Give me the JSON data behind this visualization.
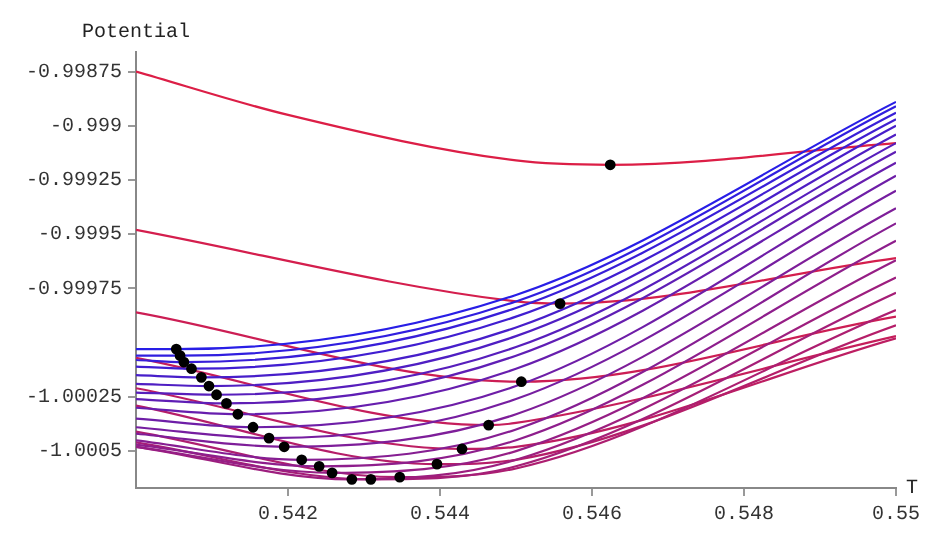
{
  "chart_data": {
    "type": "line",
    "xlabel": "T",
    "ylabel": "Potential",
    "xlim": [
      0.54,
      0.55
    ],
    "ylim": [
      -1.00067,
      -0.99866
    ],
    "xticks": [
      0.542,
      0.544,
      0.546,
      0.548,
      0.55
    ],
    "yticks": [
      -0.99875,
      -0.999,
      -0.99925,
      -0.9995,
      -0.99975,
      -1.00025,
      -1.0005
    ],
    "grid": false,
    "legend": false,
    "marker": "none",
    "line_style": "solid",
    "series": [
      {
        "type": "scatter",
        "marker": "circle",
        "color": "#000000",
        "x": [
          0.54053,
          0.54058,
          0.54063,
          0.54073,
          0.54086,
          0.54096,
          0.54106,
          0.54119,
          0.54134,
          0.54154,
          0.54175,
          0.54195,
          0.54218,
          0.54241,
          0.54258,
          0.54284,
          0.54309,
          0.54347,
          0.54396,
          0.54429,
          0.54464,
          0.54507,
          0.54558,
          0.54624
        ],
        "values": [
          -1.00003,
          -1.00006,
          -1.00009,
          -1.00012,
          -1.00016,
          -1.0002,
          -1.00024,
          -1.00028,
          -1.00033,
          -1.00039,
          -1.00044,
          -1.00048,
          -1.00054,
          -1.00057,
          -1.0006,
          -1.00063,
          -1.00063,
          -1.00062,
          -1.00056,
          -1.00049,
          -1.00038,
          -1.00018,
          -0.99982,
          -0.99918
        ]
      },
      {
        "color": "#281ee6",
        "x": [
          0.54,
          0.54053,
          0.545,
          0.55
        ],
        "values": [
          -1.00003,
          -1.00003,
          -0.99978,
          -0.99889
        ]
      },
      {
        "color": "#301edf",
        "x": [
          0.54,
          0.54058,
          0.545,
          0.55
        ],
        "values": [
          -1.00006,
          -1.00006,
          -0.99981,
          -0.99891
        ]
      },
      {
        "color": "#381ed8",
        "x": [
          0.54,
          0.54063,
          0.545,
          0.55
        ],
        "values": [
          -1.00008,
          -1.00009,
          -0.99984,
          -0.99894
        ]
      },
      {
        "color": "#401ed1",
        "x": [
          0.54,
          0.54073,
          0.545,
          0.55
        ],
        "values": [
          -1.00011,
          -1.00012,
          -0.99988,
          -0.99897
        ]
      },
      {
        "color": "#471eca",
        "x": [
          0.54,
          0.54086,
          0.545,
          0.55
        ],
        "values": [
          -1.00015,
          -1.00016,
          -0.99993,
          -0.999
        ]
      },
      {
        "color": "#4f1ec3",
        "x": [
          0.54,
          0.54096,
          0.545,
          0.55
        ],
        "values": [
          -1.00019,
          -1.0002,
          -0.99997,
          -0.99904
        ]
      },
      {
        "color": "#571ebc",
        "x": [
          0.54,
          0.54106,
          0.545,
          0.55
        ],
        "values": [
          -1.00023,
          -1.00024,
          -1.00002,
          -0.99908
        ]
      },
      {
        "color": "#5f1eb5",
        "x": [
          0.54,
          0.54119,
          0.545,
          0.55
        ],
        "values": [
          -1.00026,
          -1.00028,
          -1.00006,
          -0.99912
        ]
      },
      {
        "color": "#671eae",
        "x": [
          0.54,
          0.54134,
          0.545,
          0.55
        ],
        "values": [
          -1.0003,
          -1.00033,
          -1.00012,
          -0.99917
        ]
      },
      {
        "color": "#6e1ea7",
        "x": [
          0.54,
          0.54154,
          0.545,
          0.55
        ],
        "values": [
          -1.00035,
          -1.00039,
          -1.0002,
          -0.99923
        ]
      },
      {
        "color": "#761ea0",
        "x": [
          0.54,
          0.54175,
          0.545,
          0.55
        ],
        "values": [
          -1.00039,
          -1.00044,
          -1.00026,
          -0.9993
        ]
      },
      {
        "color": "#7e1e99",
        "x": [
          0.54,
          0.54195,
          0.545,
          0.55
        ],
        "values": [
          -1.00042,
          -1.00048,
          -1.00033,
          -0.99938
        ]
      },
      {
        "color": "#861e92",
        "x": [
          0.54,
          0.54218,
          0.545,
          0.55
        ],
        "values": [
          -1.00045,
          -1.00054,
          -1.0004,
          -0.99945
        ]
      },
      {
        "color": "#8e1e8c",
        "x": [
          0.54,
          0.54241,
          0.545,
          0.55
        ],
        "values": [
          -1.00047,
          -1.00057,
          -1.00045,
          -0.99953
        ]
      },
      {
        "color": "#961e85",
        "x": [
          0.54,
          0.54258,
          0.545,
          0.55
        ],
        "values": [
          -1.00048,
          -1.0006,
          -1.0005,
          -0.99962
        ]
      },
      {
        "color": "#9d1e7e",
        "x": [
          0.54,
          0.54284,
          0.545,
          0.55
        ],
        "values": [
          -1.00048,
          -1.00063,
          -1.00054,
          -0.9997
        ]
      },
      {
        "color": "#a51e77",
        "x": [
          0.54,
          0.54309,
          0.545,
          0.55
        ],
        "values": [
          -1.00046,
          -1.00063,
          -1.00057,
          -0.99977
        ]
      },
      {
        "color": "#ad1e70",
        "x": [
          0.54,
          0.54347,
          0.545,
          0.55
        ],
        "values": [
          -1.00041,
          -1.00062,
          -1.00058,
          -0.99985
        ]
      },
      {
        "color": "#b51e69",
        "x": [
          0.54,
          0.54396,
          0.545,
          0.55
        ],
        "values": [
          -1.00029,
          -1.00056,
          -1.00054,
          -0.99992
        ]
      },
      {
        "color": "#bd1e62",
        "x": [
          0.54,
          0.54429,
          0.545,
          0.55
        ],
        "values": [
          -1.00021,
          -1.00049,
          -1.00048,
          -0.99998
        ]
      },
      {
        "color": "#c51e5b",
        "x": [
          0.54,
          0.54464,
          0.545,
          0.55
        ],
        "values": [
          -1.00007,
          -1.00038,
          -1.00037,
          -0.99997
        ]
      },
      {
        "color": "#cc1e54",
        "x": [
          0.54,
          0.54507,
          0.55
        ],
        "values": [
          -0.99986,
          -1.00018,
          -0.99988
        ]
      },
      {
        "color": "#d41e4d",
        "x": [
          0.54,
          0.545,
          0.54558,
          0.55
        ],
        "values": [
          -0.99948,
          -0.99981,
          -0.99982,
          -0.99961
        ]
      },
      {
        "color": "#dc1e46",
        "x": [
          0.54,
          0.542,
          0.545,
          0.54624,
          0.55
        ],
        "values": [
          -0.99875,
          -0.99895,
          -0.99916,
          -0.99918,
          -0.99908
        ]
      }
    ]
  }
}
